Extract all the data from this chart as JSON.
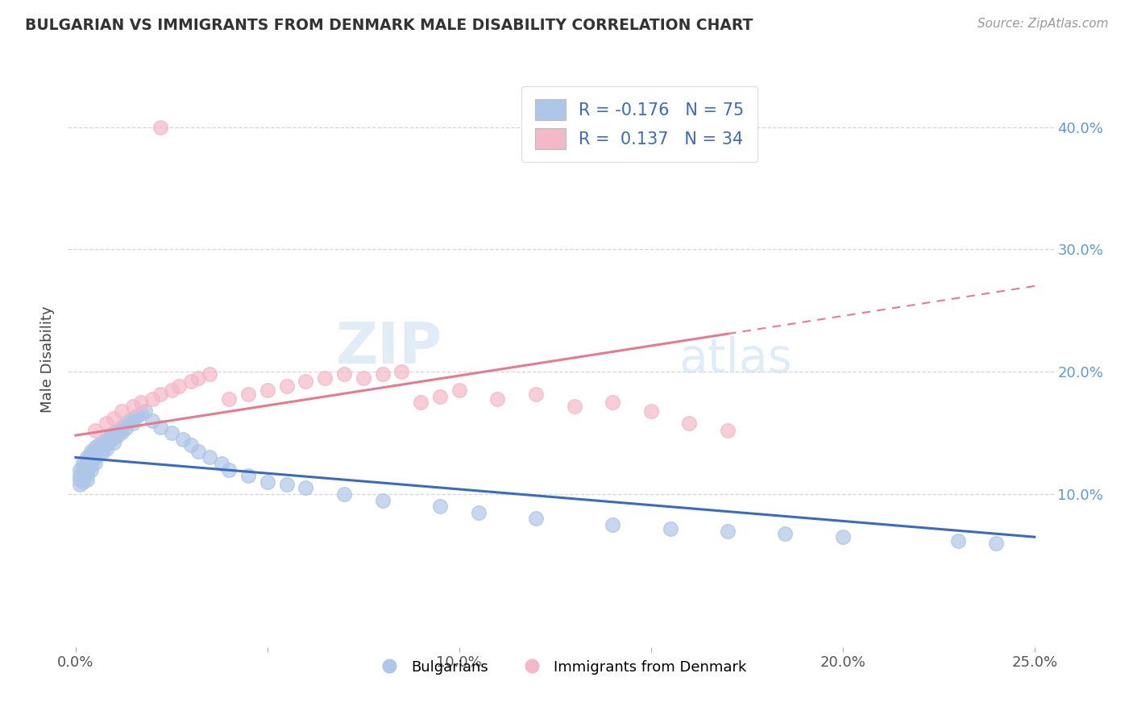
{
  "title": "BULGARIAN VS IMMIGRANTS FROM DENMARK MALE DISABILITY CORRELATION CHART",
  "source": "Source: ZipAtlas.com",
  "ylabel": "Male Disability",
  "xlim": [
    -0.002,
    0.255
  ],
  "ylim": [
    -0.025,
    0.445
  ],
  "xticks": [
    0.0,
    0.05,
    0.1,
    0.15,
    0.2,
    0.25
  ],
  "xtick_labels": [
    "0.0%",
    "",
    "10.0%",
    "",
    "20.0%",
    "25.0%"
  ],
  "yticks_right": [
    0.1,
    0.2,
    0.3,
    0.4
  ],
  "ytick_labels_right": [
    "10.0%",
    "20.0%",
    "30.0%",
    "40.0%"
  ],
  "grid_color": "#cccccc",
  "background_color": "#ffffff",
  "bulgarians_color": "#aec6e8",
  "denmark_color": "#f4b8c8",
  "trend_blue_color": "#3a6bbf",
  "trend_pink_color": "#e87a90",
  "legend_R_blue": "-0.176",
  "legend_N_blue": "75",
  "legend_R_pink": "0.137",
  "legend_N_pink": "34",
  "blue_trend_x": [
    0.0,
    0.25
  ],
  "blue_trend_y": [
    0.13,
    0.065
  ],
  "pink_trend_x": [
    0.0,
    0.25
  ],
  "pink_trend_y": [
    0.148,
    0.27
  ],
  "bulgarians_x": [
    0.001,
    0.001,
    0.001,
    0.001,
    0.002,
    0.002,
    0.002,
    0.002,
    0.002,
    0.003,
    0.003,
    0.003,
    0.003,
    0.003,
    0.003,
    0.004,
    0.004,
    0.004,
    0.004,
    0.004,
    0.005,
    0.005,
    0.005,
    0.005,
    0.006,
    0.006,
    0.006,
    0.007,
    0.007,
    0.007,
    0.008,
    0.008,
    0.008,
    0.009,
    0.009,
    0.01,
    0.01,
    0.01,
    0.011,
    0.011,
    0.012,
    0.012,
    0.013,
    0.013,
    0.014,
    0.015,
    0.015,
    0.016,
    0.017,
    0.018,
    0.02,
    0.022,
    0.025,
    0.028,
    0.03,
    0.032,
    0.035,
    0.038,
    0.04,
    0.045,
    0.05,
    0.055,
    0.06,
    0.07,
    0.08,
    0.095,
    0.105,
    0.12,
    0.14,
    0.155,
    0.17,
    0.185,
    0.2,
    0.23,
    0.24
  ],
  "bulgarians_y": [
    0.12,
    0.115,
    0.112,
    0.108,
    0.125,
    0.122,
    0.118,
    0.114,
    0.11,
    0.13,
    0.128,
    0.124,
    0.12,
    0.116,
    0.112,
    0.135,
    0.132,
    0.128,
    0.124,
    0.12,
    0.138,
    0.134,
    0.13,
    0.126,
    0.14,
    0.136,
    0.132,
    0.142,
    0.138,
    0.134,
    0.145,
    0.141,
    0.137,
    0.148,
    0.144,
    0.15,
    0.146,
    0.142,
    0.152,
    0.148,
    0.155,
    0.151,
    0.158,
    0.154,
    0.16,
    0.162,
    0.158,
    0.164,
    0.166,
    0.168,
    0.16,
    0.155,
    0.15,
    0.145,
    0.14,
    0.135,
    0.13,
    0.125,
    0.12,
    0.115,
    0.11,
    0.108,
    0.105,
    0.1,
    0.095,
    0.09,
    0.085,
    0.08,
    0.075,
    0.072,
    0.07,
    0.068,
    0.065,
    0.062,
    0.06
  ],
  "denmark_x": [
    0.005,
    0.008,
    0.01,
    0.012,
    0.015,
    0.017,
    0.02,
    0.022,
    0.025,
    0.027,
    0.03,
    0.032,
    0.035,
    0.04,
    0.045,
    0.05,
    0.055,
    0.06,
    0.065,
    0.07,
    0.075,
    0.08,
    0.085,
    0.09,
    0.095,
    0.1,
    0.11,
    0.12,
    0.13,
    0.14,
    0.15,
    0.16,
    0.17,
    0.022
  ],
  "denmark_y": [
    0.152,
    0.158,
    0.162,
    0.168,
    0.172,
    0.175,
    0.178,
    0.182,
    0.185,
    0.188,
    0.192,
    0.195,
    0.198,
    0.178,
    0.182,
    0.185,
    0.188,
    0.192,
    0.195,
    0.198,
    0.195,
    0.198,
    0.2,
    0.175,
    0.18,
    0.185,
    0.178,
    0.182,
    0.172,
    0.175,
    0.168,
    0.158,
    0.152,
    0.4
  ]
}
